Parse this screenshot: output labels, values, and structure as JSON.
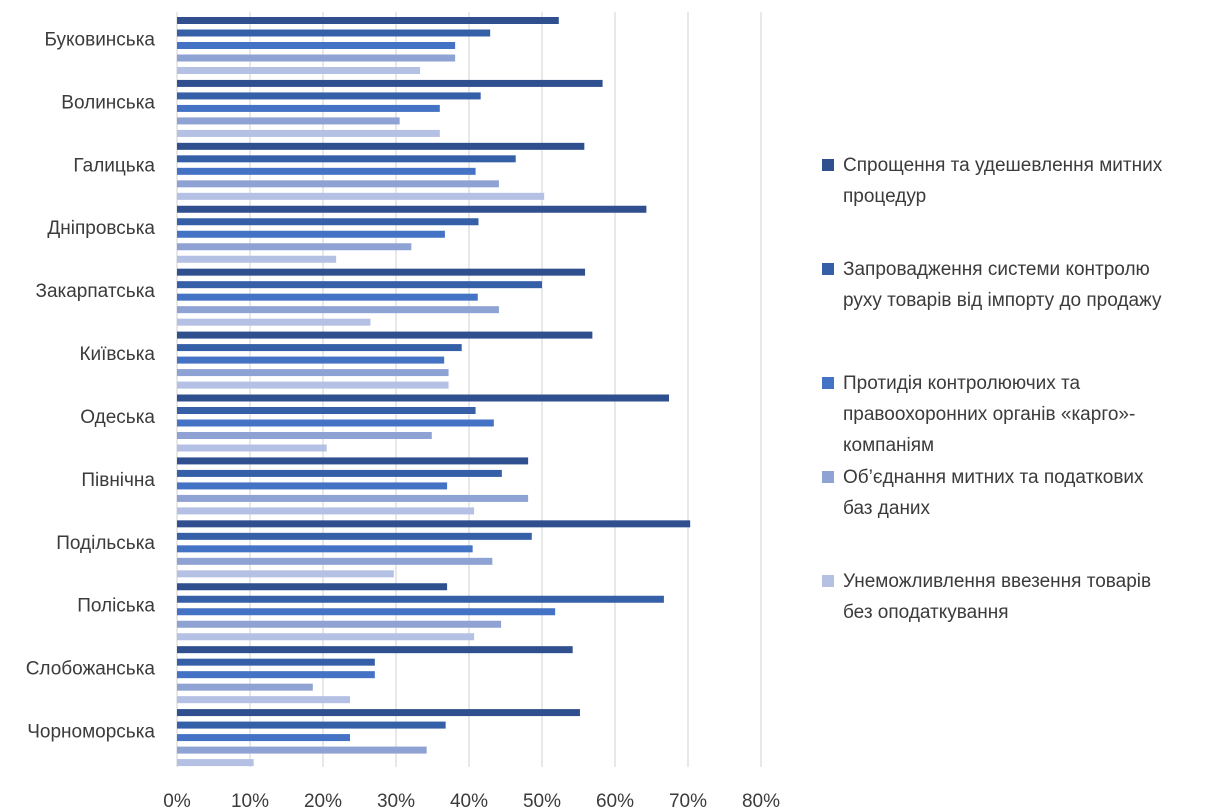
{
  "chart_data": {
    "type": "bar",
    "orientation": "horizontal",
    "categories": [
      "Буковинська",
      "Волинська",
      "Галицька",
      "Дніпровська",
      "Закарпатська",
      "Київська",
      "Одеська",
      "Північна",
      "Подільська",
      "Поліська",
      "Слобожанська",
      "Чорноморська"
    ],
    "series": [
      {
        "name": "Спрощення та удешевлення митних\nпроцедур",
        "color": "#2f4f8f",
        "values": [
          52.3,
          58.3,
          55.8,
          64.3,
          55.9,
          56.9,
          67.4,
          48.1,
          70.3,
          37.0,
          54.2,
          55.2
        ]
      },
      {
        "name": "Запровадження системи контролю\nруху товарів від імпорту до продажу",
        "color": "#3560a8",
        "values": [
          42.9,
          41.6,
          46.4,
          41.3,
          50.0,
          39.0,
          40.9,
          44.5,
          48.6,
          66.7,
          27.1,
          36.8
        ]
      },
      {
        "name": "Протидія контролюючих та\nправоохоронних органів «карго»-\nкомпаніям",
        "color": "#4472c4",
        "values": [
          38.1,
          36.0,
          40.9,
          36.7,
          41.2,
          36.6,
          43.4,
          37.0,
          40.5,
          51.8,
          27.1,
          23.7
        ]
      },
      {
        "name": "Об’єднання митних та податкових\nбаз даних",
        "color": "#8fa2d4",
        "values": [
          38.1,
          30.5,
          44.1,
          32.1,
          44.1,
          37.2,
          34.9,
          48.1,
          43.2,
          44.4,
          18.6,
          34.2
        ]
      },
      {
        "name": "Унеможливлення ввезення товарів\nбез оподаткування",
        "color": "#b4c0e4",
        "values": [
          33.3,
          36.0,
          50.3,
          21.8,
          26.5,
          37.2,
          20.5,
          40.7,
          29.7,
          40.7,
          23.7,
          10.5
        ]
      }
    ],
    "xlim": [
      0,
      80
    ],
    "x_ticks": [
      "0%",
      "10%",
      "20%",
      "30%",
      "40%",
      "50%",
      "60%",
      "70%",
      "80%"
    ],
    "grid": true,
    "legend_position": "right",
    "gridline_color": "#d9d9d9"
  }
}
